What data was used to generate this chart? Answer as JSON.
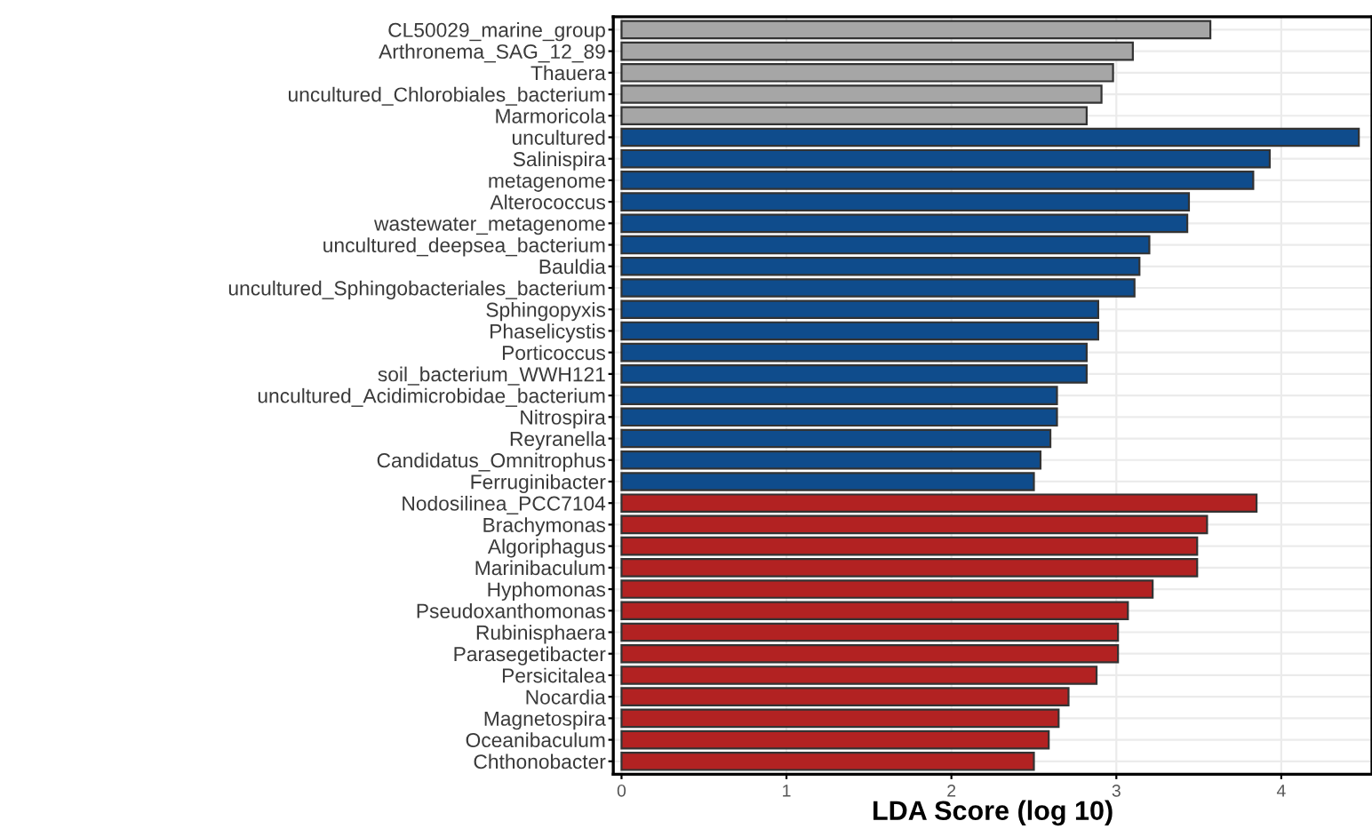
{
  "chart_data": {
    "type": "bar",
    "orientation": "horizontal",
    "xlabel": "LDA Score (log 10)",
    "categories": [
      "CL50029_marine_group",
      "Arthronema_SAG_12_89",
      "Thauera",
      "uncultured_Chlorobiales_bacterium",
      "Marmoricola",
      "uncultured",
      "Salinispira",
      "metagenome",
      "Alterococcus",
      "wastewater_metagenome",
      "uncultured_deepsea_bacterium",
      "Bauldia",
      "uncultured_Sphingobacteriales_bacterium",
      "Sphingopyxis",
      "Phaselicystis",
      "Porticoccus",
      "soil_bacterium_WWH121",
      "uncultured_Acidimicrobidae_bacterium",
      "Nitrospira",
      "Reyranella",
      "Candidatus_Omnitrophus",
      "Ferruginibacter",
      "Nodosilinea_PCC7104",
      "Brachymonas",
      "Algoriphagus",
      "Marinibaculum",
      "Hyphomonas",
      "Pseudoxanthomonas",
      "Rubinisphaera",
      "Parasegetibacter",
      "Persicitalea",
      "Nocardia",
      "Magnetospira",
      "Oceanibaculum",
      "Chthonobacter"
    ],
    "values": [
      3.57,
      3.1,
      2.98,
      2.91,
      2.82,
      4.47,
      3.93,
      3.83,
      3.44,
      3.43,
      3.2,
      3.14,
      3.11,
      2.89,
      2.89,
      2.82,
      2.82,
      2.64,
      2.64,
      2.6,
      2.54,
      2.5,
      3.85,
      3.55,
      3.49,
      3.49,
      3.22,
      3.07,
      3.01,
      3.01,
      2.88,
      2.71,
      2.65,
      2.59,
      2.5
    ],
    "colors": [
      "#a6a6a6",
      "#a6a6a6",
      "#a6a6a6",
      "#a6a6a6",
      "#a6a6a6",
      "#0f4c8c",
      "#0f4c8c",
      "#0f4c8c",
      "#0f4c8c",
      "#0f4c8c",
      "#0f4c8c",
      "#0f4c8c",
      "#0f4c8c",
      "#0f4c8c",
      "#0f4c8c",
      "#0f4c8c",
      "#0f4c8c",
      "#0f4c8c",
      "#0f4c8c",
      "#0f4c8c",
      "#0f4c8c",
      "#0f4c8c",
      "#b22222",
      "#b22222",
      "#b22222",
      "#b22222",
      "#b22222",
      "#b22222",
      "#b22222",
      "#b22222",
      "#b22222",
      "#b22222",
      "#b22222",
      "#b22222",
      "#b22222"
    ],
    "xlim": [
      -0.05,
      4.55
    ],
    "xticks": [
      0,
      1,
      2,
      3,
      4
    ],
    "grid": true
  }
}
